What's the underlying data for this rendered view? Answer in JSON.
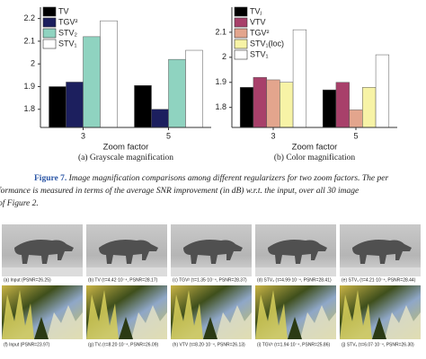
{
  "chart_data": [
    {
      "type": "bar",
      "caption": "(a) Grayscale magnification",
      "xlabel": "Zoom factor",
      "categories": [
        "3",
        "5"
      ],
      "series": [
        {
          "name": "TV",
          "color": "#000000",
          "values": [
            1.9,
            1.905
          ]
        },
        {
          "name": "TGV²",
          "color": "#1c1f5e",
          "values": [
            1.92,
            1.8
          ]
        },
        {
          "name": "STV₂",
          "color": "#8fd3c0",
          "values": [
            2.12,
            2.02
          ]
        },
        {
          "name": "STV₁",
          "color": "#ffffff",
          "values": [
            2.19,
            2.06
          ]
        }
      ],
      "ylim": [
        1.72,
        2.25
      ],
      "yticks": [
        1.8,
        1.9,
        2,
        2.1,
        2.2
      ],
      "legend": "upper left"
    },
    {
      "type": "bar",
      "caption": "(b) Color magnification",
      "xlabel": "Zoom factor",
      "categories": [
        "3",
        "5"
      ],
      "series": [
        {
          "name": "TVⱼ",
          "color": "#000000",
          "values": [
            1.88,
            1.87
          ]
        },
        {
          "name": "VTV",
          "color": "#a8406a",
          "values": [
            1.92,
            1.9
          ]
        },
        {
          "name": "TGV²",
          "color": "#e3a58d",
          "values": [
            1.91,
            1.79
          ]
        },
        {
          "name": "STV₁(loc)",
          "color": "#f7f3a6",
          "values": [
            1.9,
            1.88
          ]
        },
        {
          "name": "STV₁",
          "color": "#ffffff",
          "values": [
            2.11,
            2.01
          ]
        }
      ],
      "ylim": [
        1.72,
        2.2
      ],
      "yticks": [
        1.8,
        1.9,
        2,
        2.1
      ],
      "legend": "upper left"
    }
  ],
  "figure": {
    "label": "Figure 7.",
    "lines": [
      " Image magnification comparisons among different regularizers for two zoom factors. The per",
      "formance is measured in terms of the average SNR improvement (in dB) w.r.t. the input, over all 30 image",
      "of Figure 2."
    ]
  },
  "images": {
    "row1": [
      "(a) Input (PSNR=26.25)",
      "(b) TV (τ=4.42·10⁻⁴, PSNR=28.17)",
      "(c) TGV² (τ=1.35·10⁻⁴, PSNR=28.37)",
      "(d) STV₂ (τ=4.99·10⁻⁴, PSNR=28.41)",
      "(e) STV₁ (τ=4.21·10⁻⁴, PSNR=28.44)"
    ],
    "row2": [
      "(f) Input (PSNR=23.97)",
      "(g) TVⱼ (τ=8.20·10⁻⁴, PSNR=26.09)",
      "(h) VTV (τ=8.20·10⁻⁴, PSNR=26.13)",
      "(i) TGV² (τ=1.94·10⁻⁴, PSNR=25.86)",
      "(j) STV₁ (τ=6.07·10⁻⁴, PSNR=26.30)"
    ]
  }
}
